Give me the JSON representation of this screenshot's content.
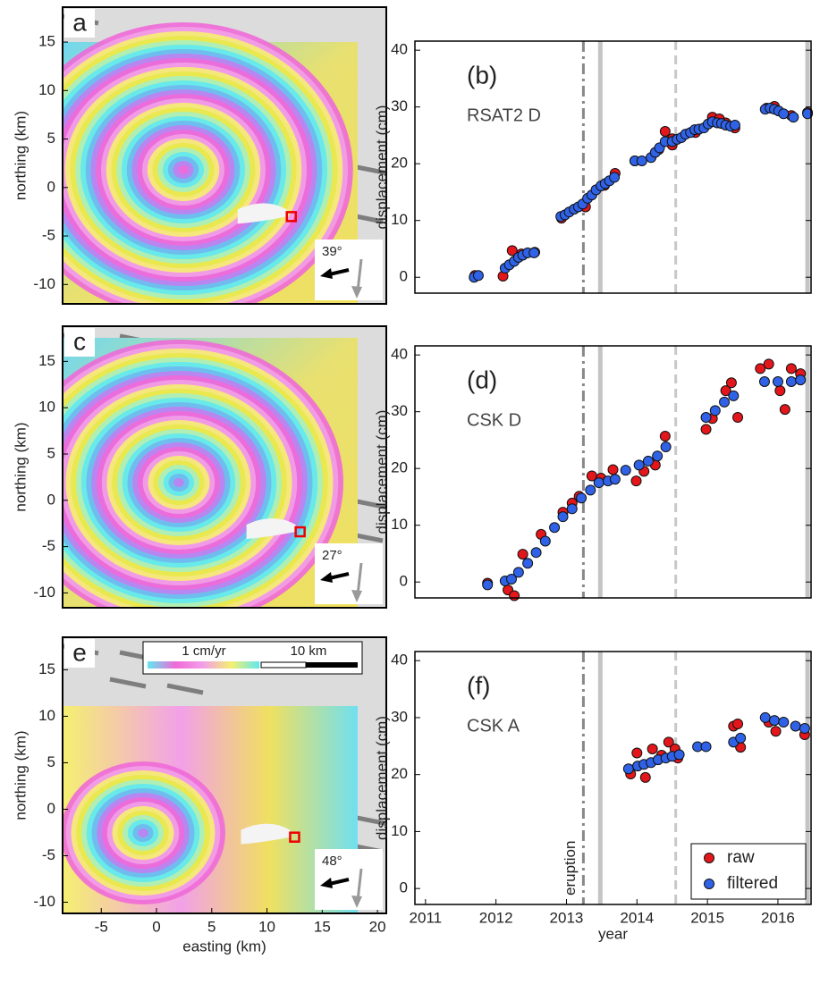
{
  "chart_data": [
    {
      "type": "map",
      "panel": "a",
      "look_angle": "39°",
      "ylabel": "northing (km)",
      "xlim": [
        -8.5,
        20.8
      ],
      "ylim": [
        -12,
        18.6
      ],
      "yticks": [
        -10,
        -5,
        0,
        5,
        10,
        15
      ],
      "marker": {
        "x": 12.2,
        "y": -3
      }
    },
    {
      "type": "scatter",
      "panel": "(b)",
      "title": "RSAT2 D",
      "ylabel": "displacement (cm)",
      "xlim": [
        2010.85,
        2016.47
      ],
      "ylim": [
        -2.8,
        41.6
      ],
      "yticks": [
        0,
        10,
        20,
        30,
        40
      ],
      "events": [
        {
          "x": 2013.24,
          "style": "dashdot"
        },
        {
          "x": 2013.48,
          "style": "solid"
        },
        {
          "x": 2014.55,
          "style": "dashed"
        },
        {
          "x": 2016.42,
          "style": "solid"
        }
      ],
      "series": [
        {
          "color": "#e3161b",
          "x": [
            2011.7,
            2012.1,
            2012.23,
            2012.36,
            2012.55,
            2012.93,
            2013.27,
            2013.54,
            2013.69,
            2013.97,
            2014.31,
            2014.4,
            2014.5,
            2014.5,
            2014.83,
            2015.07,
            2015.17,
            2015.26,
            2015.39,
            2015.84,
            2015.95,
            2016.19,
            2016.42
          ],
          "values": [
            0.3,
            0.2,
            4.7,
            4.1,
            4.4,
            10.4,
            12.4,
            16.2,
            18.3,
            20.5,
            22.5,
            25.7,
            23.3,
            24.4,
            25.5,
            28.2,
            27.9,
            27.2,
            26.3,
            29.8,
            30.1,
            28.5,
            29.0
          ]
        },
        {
          "color": "#2f62e6",
          "x": [
            2011.69,
            2011.75,
            2012.13,
            2012.19,
            2012.26,
            2012.32,
            2012.38,
            2012.45,
            2012.54,
            2012.92,
            2012.98,
            2013.04,
            2013.11,
            2013.17,
            2013.23,
            2013.3,
            2013.36,
            2013.42,
            2013.49,
            2013.55,
            2013.61,
            2013.68,
            2013.97,
            2014.07,
            2014.2,
            2014.26,
            2014.32,
            2014.4,
            2014.5,
            2014.57,
            2014.63,
            2014.69,
            2014.76,
            2014.82,
            2014.88,
            2014.95,
            2015.01,
            2015.07,
            2015.14,
            2015.2,
            2015.26,
            2015.33,
            2015.39,
            2015.82,
            2015.89,
            2015.95,
            2016.01,
            2016.08,
            2016.22,
            2016.42
          ],
          "values": [
            0,
            0.3,
            1.6,
            2.2,
            2.8,
            3.5,
            3.9,
            4.3,
            4.3,
            10.7,
            11,
            11.5,
            12,
            12.4,
            12.9,
            13.9,
            14.5,
            15.4,
            16.1,
            16.5,
            17,
            17.6,
            20.5,
            20.5,
            21.1,
            22,
            22.8,
            23.9,
            23.9,
            24.3,
            24.6,
            25.2,
            25.5,
            26,
            26.1,
            26.3,
            27,
            27.4,
            27.2,
            27.1,
            26.8,
            26.6,
            26.8,
            29.6,
            29.8,
            29.6,
            29.3,
            28.8,
            28.2,
            28.8
          ]
        }
      ]
    },
    {
      "type": "map",
      "panel": "c",
      "look_angle": "27°",
      "ylabel": "northing (km)",
      "xlim": [
        -8.5,
        20.8
      ],
      "ylim": [
        -11.6,
        18.8
      ],
      "yticks": [
        -10,
        -5,
        0,
        5,
        10,
        15
      ],
      "marker": {
        "x": 13.0,
        "y": -3.4
      }
    },
    {
      "type": "scatter",
      "panel": "(d)",
      "title": "CSK D",
      "ylabel": "displacement (cm)",
      "xlim": [
        2010.85,
        2016.47
      ],
      "ylim": [
        -2.8,
        41.6
      ],
      "yticks": [
        0,
        10,
        20,
        30,
        40
      ],
      "events": [
        {
          "x": 2013.24,
          "style": "dashdot"
        },
        {
          "x": 2013.48,
          "style": "solid"
        },
        {
          "x": 2014.55,
          "style": "dashed"
        },
        {
          "x": 2016.42,
          "style": "solid"
        }
      ],
      "series": [
        {
          "color": "#e3161b",
          "x": [
            2011.88,
            2012.17,
            2012.26,
            2012.38,
            2012.64,
            2012.95,
            2013.08,
            2013.18,
            2013.36,
            2013.49,
            2013.66,
            2013.99,
            2014.1,
            2014.26,
            2014.4,
            2014.98,
            2015.07,
            2015.26,
            2015.34,
            2015.43,
            2015.75,
            2015.87,
            2016.03,
            2016.1,
            2016.19,
            2016.32
          ],
          "values": [
            -0.2,
            -1.4,
            -2.4,
            4.9,
            8.4,
            12.3,
            13.9,
            15.1,
            18.7,
            18.3,
            19.8,
            17.8,
            19.5,
            20.6,
            25.7,
            26.9,
            28.8,
            33.7,
            35.1,
            29.0,
            37.6,
            38.4,
            33.7,
            30.4,
            37.6,
            36.7
          ]
        },
        {
          "color": "#2f62e6",
          "x": [
            2011.88,
            2012.13,
            2012.22,
            2012.32,
            2012.45,
            2012.57,
            2012.7,
            2012.83,
            2012.95,
            2013.08,
            2013.21,
            2013.34,
            2013.46,
            2013.59,
            2013.69,
            2013.84,
            2014.03,
            2014.16,
            2014.29,
            2014.41,
            2014.98,
            2015.11,
            2015.24,
            2015.37,
            2015.81,
            2016.0,
            2016.19,
            2016.32
          ],
          "values": [
            -0.5,
            0.2,
            0.5,
            1.7,
            3.3,
            5.2,
            7.2,
            9.6,
            11.5,
            12.9,
            14.8,
            16.2,
            17.5,
            17.8,
            18.1,
            19.7,
            20.6,
            21.3,
            22.2,
            23.8,
            29.0,
            30.2,
            31.7,
            32.8,
            35.3,
            35.3,
            35.3,
            35.6
          ]
        }
      ]
    },
    {
      "type": "map",
      "panel": "e",
      "look_angle": "48°",
      "ylabel": "northing (km)",
      "xlabel": "easting (km)",
      "xlim": [
        -8.5,
        20.8
      ],
      "ylim": [
        -11.2,
        18.5
      ],
      "yticks": [
        -10,
        -5,
        0,
        5,
        10,
        15
      ],
      "xticks": [
        -5,
        0,
        5,
        10,
        15,
        20
      ],
      "marker": {
        "x": 12.5,
        "y": -3
      },
      "colorbar_label": "1 cm/yr",
      "scale_label": "10 km"
    },
    {
      "type": "scatter",
      "panel": "(f)",
      "title": "CSK A",
      "ylabel": "displacement (cm)",
      "xlabel": "year",
      "xlim": [
        2010.85,
        2016.47
      ],
      "ylim": [
        -2.8,
        41.6
      ],
      "yticks": [
        0,
        10,
        20,
        30,
        40
      ],
      "xticks": [
        2011,
        2012,
        2013,
        2014,
        2015,
        2016
      ],
      "legend": "lower right",
      "events": [
        {
          "x": 2013.24,
          "style": "dashdot",
          "label": "eruption"
        },
        {
          "x": 2013.48,
          "style": "solid"
        },
        {
          "x": 2014.55,
          "style": "dashed"
        },
        {
          "x": 2016.42,
          "style": "solid"
        }
      ],
      "series": [
        {
          "name": "raw",
          "color": "#e3161b",
          "x": [
            2013.91,
            2014.0,
            2014.12,
            2014.22,
            2014.35,
            2014.45,
            2014.54,
            2014.58,
            2015.37,
            2015.43,
            2015.47,
            2015.87,
            2015.97,
            2016.38
          ],
          "values": [
            20.1,
            23.8,
            19.5,
            24.5,
            23.4,
            25.7,
            24.5,
            22.9,
            28.5,
            28.9,
            24.8,
            29.2,
            27.6,
            27.0
          ]
        },
        {
          "name": "filtered",
          "color": "#2f62e6",
          "x": [
            2013.88,
            2014.01,
            2014.1,
            2014.2,
            2014.3,
            2014.41,
            2014.5,
            2014.6,
            2014.86,
            2014.98,
            2015.37,
            2015.47,
            2015.82,
            2015.95,
            2016.08,
            2016.25,
            2016.38
          ],
          "values": [
            21,
            21.5,
            21.8,
            22.1,
            22.6,
            22.9,
            23.2,
            23.5,
            24.9,
            24.9,
            25.7,
            26.4,
            30,
            29.5,
            29.2,
            28.5,
            28.1
          ]
        }
      ]
    }
  ]
}
